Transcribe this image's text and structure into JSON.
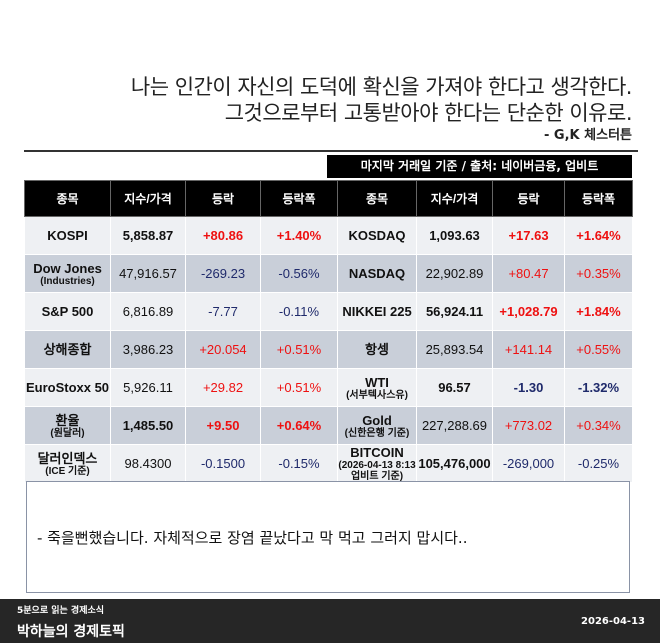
{
  "quote": {
    "line1": "나는 인간이 자신의 도덕에 확신을 가져야 한다고 생각한다.",
    "line2": "그것으로부터 고통받아야 한다는 단순한 이유로.",
    "author": "- G,K 체스터튼"
  },
  "source_label": "마지막 거래일 기준 / 출처: 네이버금융, 업비트",
  "table": {
    "headers": [
      "종목",
      "지수/가격",
      "등락",
      "등락폭",
      "종목",
      "지수/가격",
      "등락",
      "등락폭"
    ],
    "rows": [
      {
        "shade": "light",
        "cells": [
          {
            "text": "KOSPI",
            "bold": true
          },
          {
            "text": "5,858.87",
            "bold": true
          },
          {
            "text": "+80.86",
            "color": "red",
            "bold": true
          },
          {
            "text": "+1.40%",
            "color": "red",
            "bold": true
          },
          {
            "text": "KOSDAQ",
            "bold": true
          },
          {
            "text": "1,093.63",
            "bold": true
          },
          {
            "text": "+17.63",
            "color": "red",
            "bold": true
          },
          {
            "text": "+1.64%",
            "color": "red",
            "bold": true
          }
        ]
      },
      {
        "shade": "gray",
        "cells": [
          {
            "text": "Dow Jones",
            "sub": "(Industries)",
            "bold": true
          },
          {
            "text": "47,916.57"
          },
          {
            "text": "-269.23",
            "color": "blue"
          },
          {
            "text": "-0.56%",
            "color": "blue"
          },
          {
            "text": "NASDAQ",
            "bold": true
          },
          {
            "text": "22,902.89"
          },
          {
            "text": "+80.47",
            "color": "red"
          },
          {
            "text": "+0.35%",
            "color": "red"
          }
        ]
      },
      {
        "shade": "light",
        "cells": [
          {
            "text": "S&P 500",
            "bold": true
          },
          {
            "text": "6,816.89"
          },
          {
            "text": "-7.77",
            "color": "blue"
          },
          {
            "text": "-0.11%",
            "color": "blue"
          },
          {
            "text": "NIKKEI 225",
            "bold": true
          },
          {
            "text": "56,924.11",
            "bold": true
          },
          {
            "text": "+1,028.79",
            "color": "red",
            "bold": true
          },
          {
            "text": "+1.84%",
            "color": "red",
            "bold": true
          }
        ]
      },
      {
        "shade": "gray",
        "cells": [
          {
            "text": "상해종합",
            "bold": true
          },
          {
            "text": "3,986.23"
          },
          {
            "text": "+20.054",
            "color": "red"
          },
          {
            "text": "+0.51%",
            "color": "red"
          },
          {
            "text": "항셍",
            "bold": true
          },
          {
            "text": "25,893.54"
          },
          {
            "text": "+141.14",
            "color": "red"
          },
          {
            "text": "+0.55%",
            "color": "red"
          }
        ]
      },
      {
        "shade": "light",
        "cells": [
          {
            "text": "EuroStoxx 50",
            "bold": true
          },
          {
            "text": "5,926.11"
          },
          {
            "text": "+29.82",
            "color": "red"
          },
          {
            "text": "+0.51%",
            "color": "red"
          },
          {
            "text": "WTI",
            "sub": "(서부텍사스유)",
            "bold": true
          },
          {
            "text": "96.57",
            "bold": true
          },
          {
            "text": "-1.30",
            "color": "blue",
            "bold": true
          },
          {
            "text": "-1.32%",
            "color": "blue",
            "bold": true
          }
        ]
      },
      {
        "shade": "gray",
        "cells": [
          {
            "text": "환율",
            "sub": "(원달러)",
            "bold": true
          },
          {
            "text": "1,485.50",
            "bold": true
          },
          {
            "text": "+9.50",
            "color": "red",
            "bold": true
          },
          {
            "text": "+0.64%",
            "color": "red",
            "bold": true
          },
          {
            "text": "Gold",
            "sub": "(신한은행 기준)",
            "bold": true
          },
          {
            "text": "227,288.69"
          },
          {
            "text": "+773.02",
            "color": "red"
          },
          {
            "text": "+0.34%",
            "color": "red"
          }
        ]
      },
      {
        "shade": "light",
        "cells": [
          {
            "text": "달러인덱스",
            "sub": "(ICE 기준)",
            "bold": true
          },
          {
            "text": "98.4300"
          },
          {
            "text": "-0.1500",
            "color": "blue"
          },
          {
            "text": "-0.15%",
            "color": "blue"
          },
          {
            "text": "BITCOIN",
            "sub": "(2026-04-13 8:13 업비트 기준)",
            "bold": true
          },
          {
            "text": "105,476,000",
            "bold": true
          },
          {
            "text": "-269,000",
            "color": "blue"
          },
          {
            "text": "-0.25%",
            "color": "blue"
          }
        ]
      }
    ]
  },
  "note": "- 죽을뻔했습니다. 자체적으로 장염 끝났다고 막 먹고 그러지 맙시다..",
  "footer": {
    "subtitle": "5분으로 읽는 경제소식",
    "title": "박하늘의 경제토픽",
    "date": "2026-04-13"
  },
  "colors": {
    "up": "#ee1111",
    "down": "#1f2a6b",
    "header_bg": "#000000",
    "row_light": "#eef0f3",
    "row_gray": "#c9cfd9",
    "footer_bg": "#262626"
  }
}
